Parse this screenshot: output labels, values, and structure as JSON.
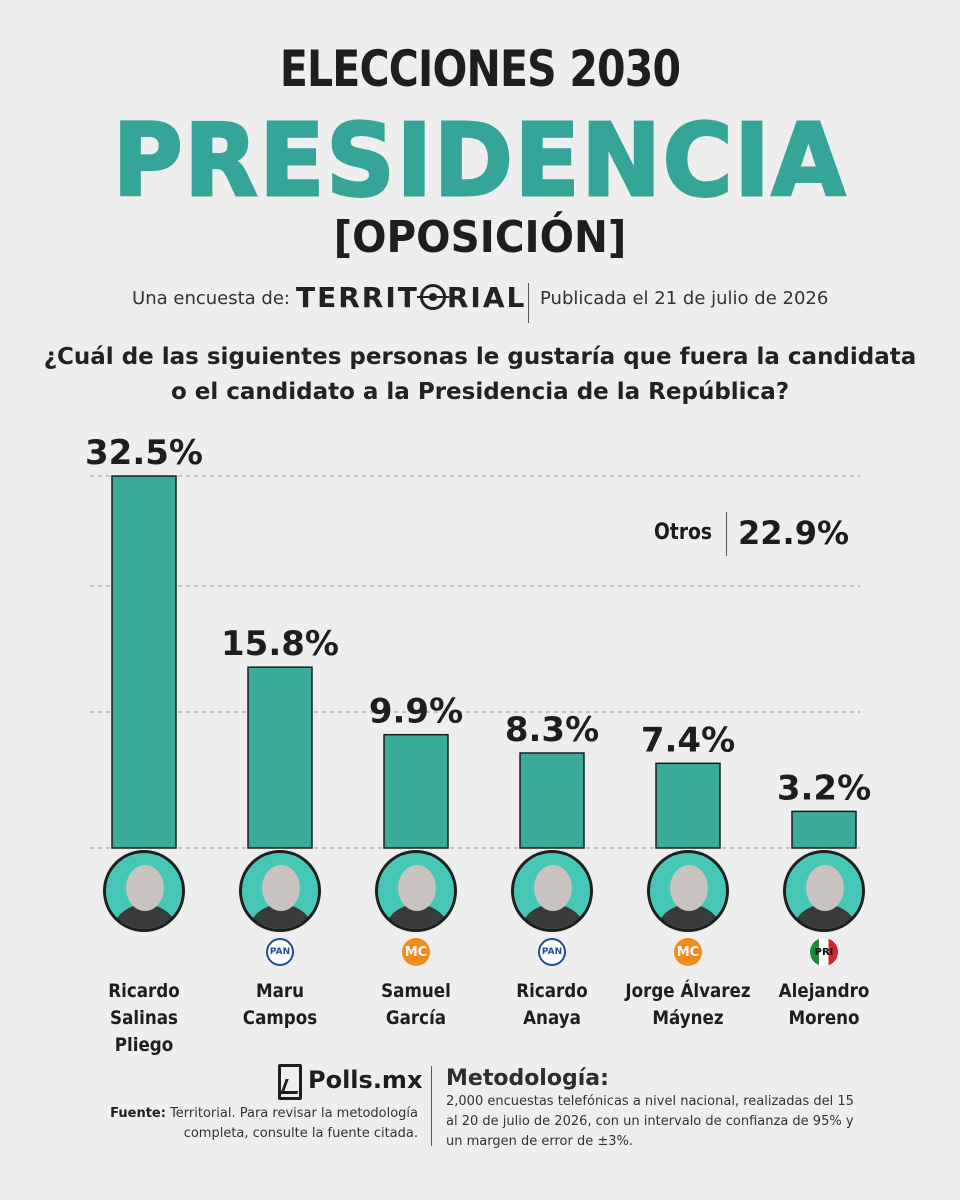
{
  "header": {
    "title_top": "ELECCIONES 2030",
    "title_main": "PRESIDENCIA",
    "title_sub": "[OPOSICIÓN]",
    "byline_label": "Una encuesta de:",
    "brand_left": "TERRIT",
    "brand_right": "RIAL",
    "published": "Publicada el 21 de julio de 2026"
  },
  "question": {
    "line1": "¿Cuál de las siguientes personas le gustaría que fuera la candidata",
    "line2": "o el candidato a la Presidencia de la República?"
  },
  "chart_data": {
    "type": "bar",
    "categories": [
      "Ricardo Salinas Pliego",
      "Maru Campos",
      "Samuel García",
      "Ricardo Anaya",
      "Jorge Álvarez Máynez",
      "Alejandro Moreno"
    ],
    "values": [
      32.5,
      15.8,
      9.9,
      8.3,
      7.4,
      3.2
    ],
    "value_labels": [
      "32.5%",
      "15.8%",
      "9.9%",
      "8.3%",
      "7.4%",
      "3.2%"
    ],
    "unit": "%",
    "ylim": [
      0,
      32.5
    ],
    "grid": true,
    "bar_color": "#3aaa9a",
    "others": {
      "label": "Otros",
      "value": 22.9,
      "value_label": "22.9%"
    }
  },
  "candidates": [
    {
      "line1": "Ricardo Salinas",
      "line2": "Pliego",
      "party": "",
      "party_label": ""
    },
    {
      "line1": "Maru",
      "line2": "Campos",
      "party": "pan",
      "party_label": "PAN"
    },
    {
      "line1": "Samuel",
      "line2": "García",
      "party": "mc",
      "party_label": "MC"
    },
    {
      "line1": "Ricardo",
      "line2": "Anaya",
      "party": "pan",
      "party_label": "PAN"
    },
    {
      "line1": "Jorge Álvarez",
      "line2": "Máynez",
      "party": "mc",
      "party_label": "MC"
    },
    {
      "line1": "Alejandro",
      "line2": "Moreno",
      "party": "pri",
      "party_label": "PRI"
    }
  ],
  "footer": {
    "logo_text": "Polls.mx",
    "source_label": "Fuente:",
    "source_text": "Territorial. Para revisar la metodología completa, consulte la fuente citada.",
    "method_title": "Metodología:",
    "method_text": "2,000 encuestas telefónicas a nivel nacional, realizadas del 15 al 20 de julio de 2026, con un intervalo de confianza de 95% y un margen de error de ±3%."
  },
  "colors": {
    "accent": "#35a597",
    "background": "#eeeeee",
    "text": "#1e1e1e"
  }
}
